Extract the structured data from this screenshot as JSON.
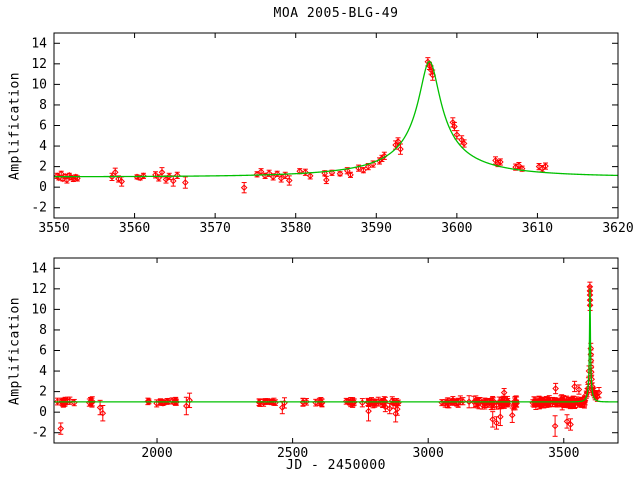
{
  "title": "MOA 2005-BLG-49",
  "x_axis_label": "JD - 2450000",
  "y_axis_label": "Amplification",
  "colors": {
    "data_points": "#ff0000",
    "model_curve": "#00c000",
    "axis": "#000000",
    "background": "#ffffff"
  },
  "chart_data": [
    {
      "type": "scatter",
      "panel": "event-detail-top",
      "title": "MOA 2005-BLG-49",
      "xlabel": "",
      "ylabel": "Amplification",
      "xlim": [
        3550,
        3620
      ],
      "ylim": [
        -3,
        15
      ],
      "xticks": [
        3550,
        3560,
        3570,
        3580,
        3590,
        3600,
        3610,
        3620
      ],
      "yticks": [
        -2,
        0,
        2,
        4,
        6,
        8,
        10,
        12,
        14
      ],
      "grid": false,
      "legend": "none",
      "model": {
        "name": "microlensing-fit",
        "t0": 3596.6,
        "u0": 0.082,
        "tE": 16.0,
        "peak_amplification": 12.2
      },
      "points": [
        [
          3550.4,
          1.1,
          0.25
        ],
        [
          3550.6,
          0.9,
          0.2
        ],
        [
          3550.9,
          1.3,
          0.25
        ],
        [
          3551.1,
          0.8,
          0.2
        ],
        [
          3551.4,
          1.05,
          0.2
        ],
        [
          3551.6,
          0.7,
          0.3
        ],
        [
          3551.9,
          1.15,
          0.2
        ],
        [
          3552.1,
          0.95,
          0.2
        ],
        [
          3552.4,
          0.8,
          0.25
        ],
        [
          3552.7,
          1.0,
          0.2
        ],
        [
          3552.9,
          0.85,
          0.25
        ],
        [
          3557.2,
          1.0,
          0.35
        ],
        [
          3557.6,
          1.45,
          0.4
        ],
        [
          3558.0,
          0.8,
          0.3
        ],
        [
          3558.4,
          0.55,
          0.45
        ],
        [
          3560.3,
          1.0,
          0.2
        ],
        [
          3560.7,
          0.9,
          0.2
        ],
        [
          3561.1,
          1.1,
          0.25
        ],
        [
          3562.6,
          1.2,
          0.3
        ],
        [
          3563.0,
          0.9,
          0.3
        ],
        [
          3563.4,
          1.45,
          0.45
        ],
        [
          3563.9,
          0.75,
          0.35
        ],
        [
          3564.3,
          1.05,
          0.3
        ],
        [
          3564.8,
          0.6,
          0.5
        ],
        [
          3565.3,
          1.15,
          0.3
        ],
        [
          3566.3,
          0.45,
          0.55
        ],
        [
          3573.6,
          -0.05,
          0.5
        ],
        [
          3575.2,
          1.25,
          0.25
        ],
        [
          3575.7,
          1.5,
          0.3
        ],
        [
          3576.2,
          1.1,
          0.25
        ],
        [
          3576.7,
          1.35,
          0.3
        ],
        [
          3577.2,
          1.0,
          0.3
        ],
        [
          3577.7,
          1.3,
          0.25
        ],
        [
          3578.2,
          0.85,
          0.35
        ],
        [
          3578.7,
          1.15,
          0.3
        ],
        [
          3579.2,
          0.65,
          0.45
        ],
        [
          3580.5,
          1.55,
          0.25
        ],
        [
          3581.2,
          1.45,
          0.3
        ],
        [
          3581.8,
          1.1,
          0.3
        ],
        [
          3583.6,
          1.35,
          0.25
        ],
        [
          3583.8,
          0.7,
          0.35
        ],
        [
          3584.5,
          1.4,
          0.25
        ],
        [
          3585.5,
          1.3,
          0.2
        ],
        [
          3586.4,
          1.6,
          0.3
        ],
        [
          3586.8,
          1.2,
          0.25
        ],
        [
          3587.8,
          1.85,
          0.3
        ],
        [
          3588.4,
          1.65,
          0.25
        ],
        [
          3589.0,
          2.0,
          0.3
        ],
        [
          3589.6,
          2.25,
          0.3
        ],
        [
          3590.4,
          2.55,
          0.3
        ],
        [
          3590.7,
          2.8,
          0.3
        ],
        [
          3591.0,
          3.05,
          0.35
        ],
        [
          3592.4,
          4.1,
          0.4
        ],
        [
          3592.7,
          4.45,
          0.35
        ],
        [
          3593.0,
          3.7,
          0.5
        ],
        [
          3596.4,
          12.2,
          0.4
        ],
        [
          3596.6,
          11.8,
          0.35
        ],
        [
          3596.8,
          11.4,
          0.4
        ],
        [
          3597.0,
          10.9,
          0.5
        ],
        [
          3599.5,
          6.3,
          0.45
        ],
        [
          3599.7,
          5.9,
          0.4
        ],
        [
          3600.0,
          5.1,
          0.4
        ],
        [
          3600.6,
          4.6,
          0.4
        ],
        [
          3600.9,
          4.25,
          0.35
        ],
        [
          3604.8,
          2.6,
          0.35
        ],
        [
          3605.1,
          2.3,
          0.3
        ],
        [
          3605.4,
          2.45,
          0.3
        ],
        [
          3607.3,
          1.95,
          0.3
        ],
        [
          3607.7,
          2.1,
          0.3
        ],
        [
          3608.1,
          1.8,
          0.25
        ],
        [
          3610.2,
          2.0,
          0.3
        ],
        [
          3610.6,
          1.8,
          0.3
        ],
        [
          3611.0,
          2.05,
          0.3
        ]
      ]
    },
    {
      "type": "scatter",
      "panel": "full-baseline-bottom",
      "title": "",
      "xlabel": "JD - 2450000",
      "ylabel": "Amplification",
      "xlim": [
        1620,
        3700
      ],
      "ylim": [
        -3,
        15
      ],
      "xticks": [
        2000,
        2500,
        3000,
        3500
      ],
      "yticks": [
        -2,
        0,
        2,
        4,
        6,
        8,
        10,
        12,
        14
      ],
      "grid": false,
      "legend": "none",
      "model": {
        "name": "microlensing-fit",
        "t0": 3596.6,
        "u0": 0.082,
        "tE": 16.0,
        "peak_amplification": 12.2
      },
      "baseline_amplification": 1.0,
      "scatter_clusters": [
        {
          "x0": 1632,
          "x1": 1700,
          "n": 13,
          "mean": 1.0,
          "spread": 0.22,
          "err_lo": 0.25,
          "err_hi": 0.4
        },
        {
          "x0": 1736,
          "x1": 1762,
          "n": 5,
          "mean": 0.95,
          "spread": 0.18,
          "err_lo": 0.3,
          "err_hi": 0.45
        },
        {
          "x0": 1955,
          "x1": 2095,
          "n": 16,
          "mean": 1.0,
          "spread": 0.18,
          "err_lo": 0.2,
          "err_hi": 0.35
        },
        {
          "x0": 2345,
          "x1": 2455,
          "n": 12,
          "mean": 0.95,
          "spread": 0.18,
          "err_lo": 0.2,
          "err_hi": 0.35
        },
        {
          "x0": 2530,
          "x1": 2610,
          "n": 8,
          "mean": 1.0,
          "spread": 0.18,
          "err_lo": 0.25,
          "err_hi": 0.4
        },
        {
          "x0": 2690,
          "x1": 2895,
          "n": 32,
          "mean": 0.95,
          "spread": 0.28,
          "err_lo": 0.2,
          "err_hi": 0.5
        },
        {
          "x0": 3045,
          "x1": 3130,
          "n": 15,
          "mean": 0.95,
          "spread": 0.3,
          "err_lo": 0.25,
          "err_hi": 0.5
        },
        {
          "x0": 3140,
          "x1": 3335,
          "n": 42,
          "mean": 0.9,
          "spread": 0.35,
          "err_lo": 0.25,
          "err_hi": 0.6
        },
        {
          "x0": 3385,
          "x1": 3580,
          "n": 95,
          "mean": 0.95,
          "spread": 0.32,
          "err_lo": 0.2,
          "err_hi": 0.55
        }
      ],
      "outlier_points": [
        [
          1645,
          -1.6,
          0.55
        ],
        [
          1790,
          0.45,
          0.7
        ],
        [
          1800,
          -0.1,
          0.75
        ],
        [
          2108,
          0.6,
          0.85
        ],
        [
          2120,
          1.15,
          0.7
        ],
        [
          2462,
          0.45,
          0.6
        ],
        [
          2470,
          0.9,
          0.5
        ],
        [
          2780,
          0.1,
          0.95
        ],
        [
          2842,
          0.5,
          0.45
        ],
        [
          2858,
          0.35,
          0.5
        ],
        [
          2880,
          -0.15,
          0.8
        ],
        [
          2886,
          0.3,
          0.6
        ],
        [
          3238,
          -0.7,
          0.75
        ],
        [
          3252,
          -1.05,
          0.6
        ],
        [
          3266,
          -0.45,
          0.85
        ],
        [
          3280,
          1.9,
          0.4
        ],
        [
          3310,
          -0.3,
          0.7
        ],
        [
          3468,
          -1.35,
          1.0
        ],
        [
          3470,
          2.3,
          0.5
        ],
        [
          3512,
          -0.9,
          0.65
        ],
        [
          3525,
          -1.2,
          0.55
        ],
        [
          3540,
          2.5,
          0.5
        ],
        [
          3556,
          2.2,
          0.45
        ]
      ],
      "event_points": [
        [
          3583,
          1.7,
          0.35
        ],
        [
          3586,
          1.9,
          0.4
        ],
        [
          3589,
          2.3,
          0.4
        ],
        [
          3591,
          2.9,
          0.45
        ],
        [
          3593,
          4.0,
          0.5
        ],
        [
          3596.3,
          12.2,
          0.45
        ],
        [
          3596.5,
          11.8,
          0.4
        ],
        [
          3596.7,
          11.4,
          0.45
        ],
        [
          3596.9,
          10.9,
          0.5
        ],
        [
          3597.1,
          10.4,
          0.5
        ],
        [
          3599.6,
          6.2,
          0.5
        ],
        [
          3599.9,
          5.6,
          0.45
        ],
        [
          3600.3,
          5.0,
          0.45
        ],
        [
          3600.8,
          4.4,
          0.4
        ],
        [
          3601.5,
          3.9,
          0.4
        ],
        [
          3603,
          3.2,
          0.4
        ],
        [
          3605,
          2.5,
          0.35
        ],
        [
          3607,
          2.1,
          0.35
        ],
        [
          3609,
          1.95,
          0.35
        ],
        [
          3611,
          2.0,
          0.35
        ],
        [
          3613,
          1.75,
          0.35
        ],
        [
          3616,
          1.6,
          0.4
        ],
        [
          3620,
          1.7,
          0.4
        ],
        [
          3624,
          1.5,
          0.45
        ],
        [
          3630,
          1.9,
          0.5
        ]
      ],
      "random_seed": 7
    }
  ]
}
